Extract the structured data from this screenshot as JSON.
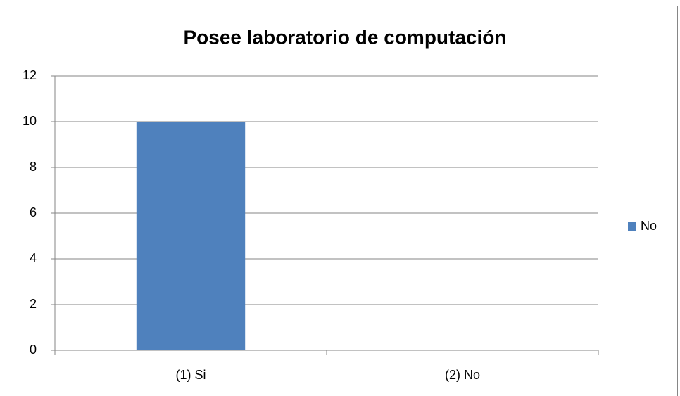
{
  "chart_data": {
    "type": "bar",
    "title": "Posee laboratorio de computación",
    "categories": [
      "(1) Si",
      "(2) No"
    ],
    "series": [
      {
        "name": "No",
        "color": "#4f81bd",
        "values": [
          10,
          0
        ]
      }
    ],
    "ylim": [
      0,
      12
    ],
    "yticks": [
      0,
      2,
      4,
      6,
      8,
      10,
      12
    ],
    "grid": true,
    "legend": "right"
  }
}
